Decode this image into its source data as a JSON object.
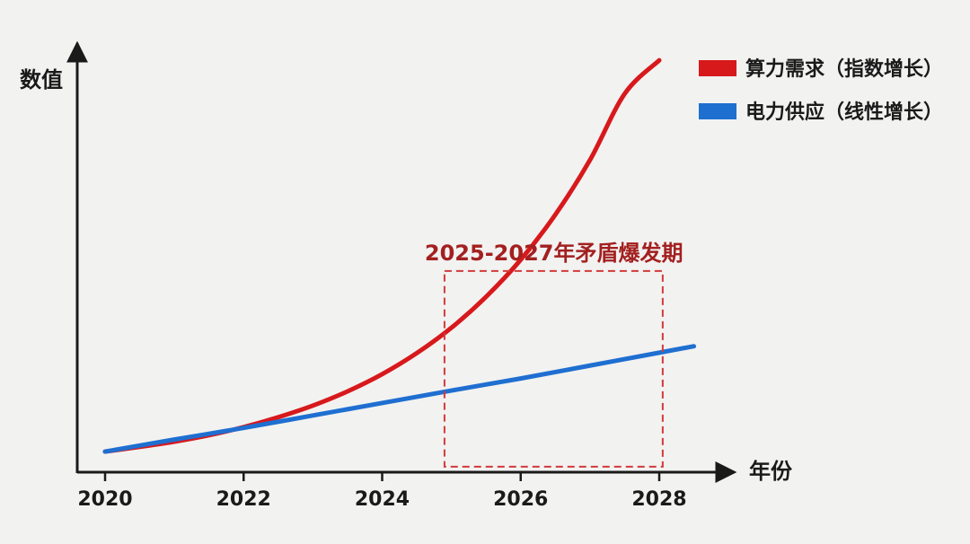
{
  "chart_data": {
    "type": "line",
    "title": "",
    "xlabel": "年份",
    "ylabel": "数值",
    "x_ticks": [
      2020,
      2022,
      2024,
      2026,
      2028
    ],
    "xlim": [
      2020,
      2028.5
    ],
    "ylim": [
      0,
      100
    ],
    "grid": false,
    "legend_position": "top-right",
    "series": [
      {
        "name": "算力需求（指数增长）",
        "color": "#d7191c",
        "x": [
          2020,
          2020.5,
          2021,
          2021.5,
          2022,
          2022.5,
          2023,
          2023.5,
          2024,
          2024.5,
          2025,
          2025.5,
          2026,
          2026.5,
          2027,
          2027.5,
          2028
        ],
        "y": [
          5.0,
          6.1,
          7.3,
          8.8,
          10.7,
          13.0,
          15.7,
          19.0,
          23.0,
          27.9,
          33.8,
          41.0,
          49.6,
          60.1,
          72.8,
          88.2,
          96.0
        ]
      },
      {
        "name": "电力供应（线性增长）",
        "color": "#1f6fd1",
        "x": [
          2020,
          2021,
          2022,
          2023,
          2024,
          2025,
          2026,
          2027,
          2028,
          2028.5
        ],
        "y": [
          5.0,
          7.8,
          10.5,
          13.4,
          16.3,
          19.2,
          22.0,
          25.0,
          28.0,
          29.5
        ]
      }
    ],
    "annotations": [
      {
        "text": "2025-2027年矛盾爆发期",
        "type": "dashed-box",
        "x_range": [
          2024.9,
          2028.05
        ],
        "y_range": [
          1.5,
          47
        ],
        "color": "#d23a3a",
        "text_color": "#a32020"
      }
    ]
  }
}
